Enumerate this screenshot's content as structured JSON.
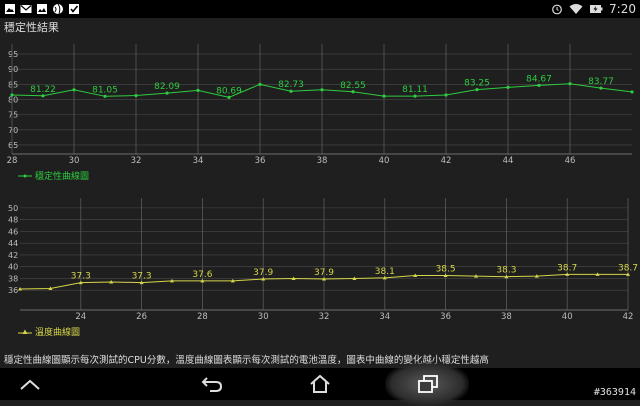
{
  "status_bar": {
    "time": "7:20",
    "icons": [
      "image-icon",
      "gmail-icon",
      "gallery-icon",
      "globe-icon",
      "checkbox-icon",
      "alarm-icon",
      "wifi-icon",
      "battery-charging-icon"
    ]
  },
  "app": {
    "title": "穩定性結果"
  },
  "charts": [
    {
      "legend": "穩定性曲線圖",
      "color": "#2ecc40",
      "chart_data": {
        "type": "line",
        "x_ticks": [
          28,
          30,
          32,
          34,
          36,
          38,
          40,
          42,
          44,
          46
        ],
        "y_ticks": [
          65,
          70,
          75,
          80,
          85,
          90,
          95
        ],
        "xlim": [
          28,
          48
        ],
        "ylim": [
          62,
          97
        ],
        "series": [
          {
            "name": "穩定性曲線圖",
            "x": [
              28,
              29,
              30,
              31,
              32,
              33,
              34,
              35,
              36,
              37,
              38,
              39,
              40,
              41,
              42,
              43,
              44,
              45,
              46,
              47,
              48
            ],
            "y": [
              81.5,
              81.22,
              83.2,
              81.05,
              81.3,
              82.09,
              83.0,
              80.69,
              85.0,
              82.73,
              83.2,
              82.55,
              81.1,
              81.11,
              81.5,
              83.25,
              84.0,
              84.67,
              85.2,
              83.77,
              82.5
            ]
          }
        ],
        "labels": [
          {
            "x": 29,
            "y": 81.22,
            "text": "81.22"
          },
          {
            "x": 31,
            "y": 81.05,
            "text": "81.05"
          },
          {
            "x": 33,
            "y": 82.09,
            "text": "82.09"
          },
          {
            "x": 35,
            "y": 80.69,
            "text": "80.69"
          },
          {
            "x": 37,
            "y": 82.73,
            "text": "82.73"
          },
          {
            "x": 39,
            "y": 82.55,
            "text": "82.55"
          },
          {
            "x": 41,
            "y": 81.11,
            "text": "81.11"
          },
          {
            "x": 43,
            "y": 83.25,
            "text": "83.25"
          },
          {
            "x": 45,
            "y": 84.67,
            "text": "84.67"
          },
          {
            "x": 47,
            "y": 83.77,
            "text": "83.77"
          }
        ]
      }
    },
    {
      "legend": "溫度曲線圖",
      "color": "#d6d64a",
      "chart_data": {
        "type": "line",
        "x_ticks": [
          24,
          26,
          28,
          30,
          32,
          34,
          36,
          38,
          40,
          42
        ],
        "y_ticks": [
          36,
          38,
          40,
          42,
          44,
          46,
          48,
          50
        ],
        "xlim": [
          22,
          42
        ],
        "ylim": [
          34,
          51
        ],
        "series": [
          {
            "name": "溫度曲線圖",
            "x": [
              22,
              23,
              24,
              25,
              26,
              27,
              28,
              29,
              30,
              31,
              32,
              33,
              34,
              35,
              36,
              37,
              38,
              39,
              40,
              41,
              42
            ],
            "y": [
              36.2,
              36.3,
              37.3,
              37.4,
              37.3,
              37.6,
              37.6,
              37.6,
              37.9,
              38.0,
              37.9,
              38.0,
              38.1,
              38.5,
              38.5,
              38.4,
              38.3,
              38.4,
              38.7,
              38.7,
              38.7
            ],
            "markers": true
          }
        ],
        "labels": [
          {
            "x": 24,
            "y": 37.3,
            "text": "37.3"
          },
          {
            "x": 26,
            "y": 37.3,
            "text": "37.3"
          },
          {
            "x": 28,
            "y": 37.6,
            "text": "37.6"
          },
          {
            "x": 30,
            "y": 37.9,
            "text": "37.9"
          },
          {
            "x": 32,
            "y": 37.9,
            "text": "37.9"
          },
          {
            "x": 34,
            "y": 38.1,
            "text": "38.1"
          },
          {
            "x": 36,
            "y": 38.5,
            "text": "38.5"
          },
          {
            "x": 38,
            "y": 38.3,
            "text": "38.3"
          },
          {
            "x": 40,
            "y": 38.7,
            "text": "38.7"
          },
          {
            "x": 42,
            "y": 38.7,
            "text": "38.7"
          }
        ]
      }
    }
  ],
  "footer_note": "穩定性曲線圖顯示每次測試的CPU分數，溫度曲線圖表顯示每次測試的電池溫度，圖表中曲線的變化越小穩定性越高",
  "nav": {
    "back_icon": "back-icon",
    "home_icon": "home-icon",
    "recent_icon": "recent-apps-icon",
    "hide_icon": "hide-keyboard-icon"
  },
  "watermark": "#363914"
}
